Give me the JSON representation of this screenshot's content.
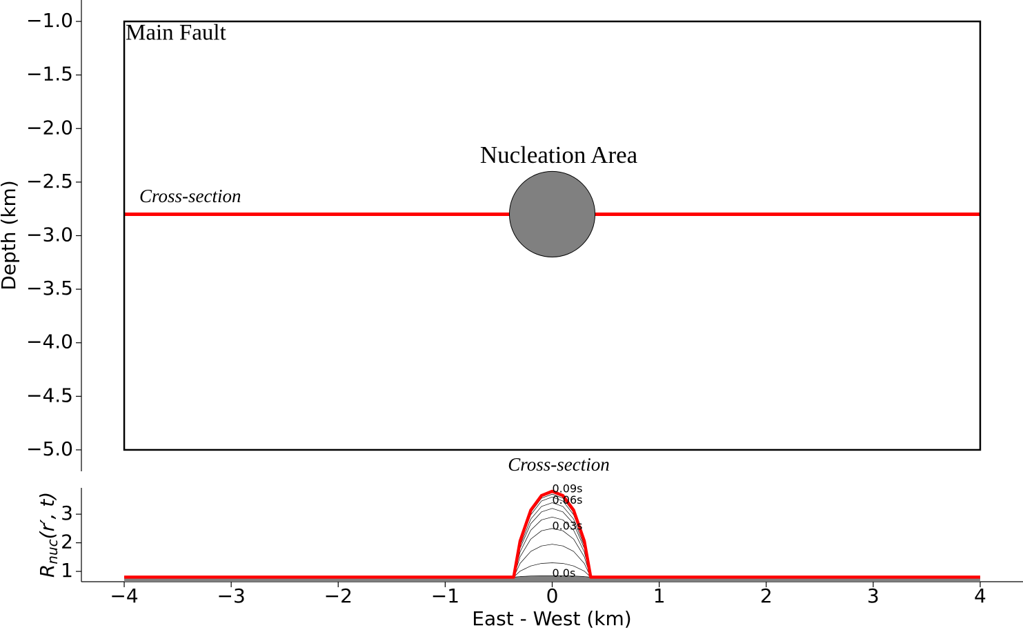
{
  "chart_data": [
    {
      "type": "fault_map",
      "ylabel": "Depth (km)",
      "xlim": [
        -4.4,
        4.4
      ],
      "ylim": [
        -5.2,
        -0.8
      ],
      "yticks": [
        {
          "value": -1.0,
          "label": "−1.0"
        },
        {
          "value": -1.5,
          "label": "−1.5"
        },
        {
          "value": -2.0,
          "label": "−2.0"
        },
        {
          "value": -2.5,
          "label": "−2.5"
        },
        {
          "value": -3.0,
          "label": "−3.0"
        },
        {
          "value": -3.5,
          "label": "−3.5"
        },
        {
          "value": -4.0,
          "label": "−4.0"
        },
        {
          "value": -4.5,
          "label": "−4.5"
        },
        {
          "value": -5.0,
          "label": "−5.0"
        }
      ],
      "fault": {
        "label": "Main Fault",
        "x": [
          -4,
          4
        ],
        "y": [
          -5,
          -1
        ],
        "color": "#000000"
      },
      "nucleation": {
        "label": "Nucleation Area",
        "center": [
          0,
          -2.8
        ],
        "radius": 0.4,
        "color": "#808080"
      },
      "cross_section": {
        "label": "Cross-section",
        "x": [
          -4,
          4
        ],
        "y": -2.8,
        "color": "#ff0000"
      }
    },
    {
      "type": "line",
      "title": "Cross-section",
      "xlabel": "East - West (km)",
      "ylabel": [
        "R",
        "nuc",
        "(r′, t)"
      ],
      "xlim": [
        -4.4,
        4.4
      ],
      "ylim": [
        0.64,
        3.92
      ],
      "xticks": [
        {
          "value": -4,
          "label": "−4"
        },
        {
          "value": -3,
          "label": "−3"
        },
        {
          "value": -2,
          "label": "−2"
        },
        {
          "value": -1,
          "label": "−1"
        },
        0,
        1,
        2,
        3,
        4
      ],
      "yticks": [
        1,
        2,
        3
      ],
      "x": [
        -4,
        -0.36,
        -0.3,
        -0.2,
        -0.1,
        0,
        0.1,
        0.2,
        0.3,
        0.36,
        4
      ],
      "series": [
        {
          "color": "#000000",
          "fill": "#808080",
          "label": "0.0s",
          "values": [
            0.8,
            0.8,
            0.82,
            0.84,
            0.85,
            0.85,
            0.85,
            0.84,
            0.82,
            0.8,
            0.8
          ]
        },
        {
          "color": "#000000",
          "values": [
            0.8,
            0.8,
            1.01,
            1.19,
            1.28,
            1.3,
            1.28,
            1.19,
            1.01,
            0.8,
            0.8
          ]
        },
        {
          "color": "#000000",
          "values": [
            0.8,
            0.8,
            1.28,
            1.7,
            1.89,
            1.95,
            1.89,
            1.7,
            1.28,
            0.8,
            0.8
          ]
        },
        {
          "color": "#000000",
          "label": "0.03s",
          "values": [
            0.8,
            0.8,
            1.51,
            2.13,
            2.42,
            2.5,
            2.42,
            2.13,
            1.51,
            0.8,
            0.8
          ]
        },
        {
          "color": "#000000",
          "values": [
            0.8,
            0.8,
            1.68,
            2.44,
            2.8,
            2.9,
            2.8,
            2.44,
            1.68,
            0.8,
            0.8
          ]
        },
        {
          "color": "#000000",
          "values": [
            0.8,
            0.8,
            1.81,
            2.67,
            3.08,
            3.2,
            3.08,
            2.67,
            1.81,
            0.8,
            0.8
          ]
        },
        {
          "color": "#000000",
          "label": "0.06s",
          "values": [
            0.8,
            0.8,
            1.89,
            2.83,
            3.27,
            3.4,
            3.27,
            2.83,
            1.89,
            0.8,
            0.8
          ]
        },
        {
          "color": "#000000",
          "values": [
            0.8,
            0.8,
            1.98,
            2.98,
            3.46,
            3.6,
            3.46,
            2.98,
            1.98,
            0.8,
            0.8
          ]
        },
        {
          "color": "#000000",
          "values": [
            0.8,
            0.8,
            2.02,
            3.06,
            3.56,
            3.7,
            3.56,
            3.06,
            2.02,
            0.8,
            0.8
          ]
        },
        {
          "color": "#ff0000",
          "label": "0.09s",
          "values": [
            0.8,
            0.8,
            2.06,
            3.14,
            3.65,
            3.8,
            3.65,
            3.14,
            2.06,
            0.8,
            0.8
          ]
        }
      ]
    }
  ]
}
